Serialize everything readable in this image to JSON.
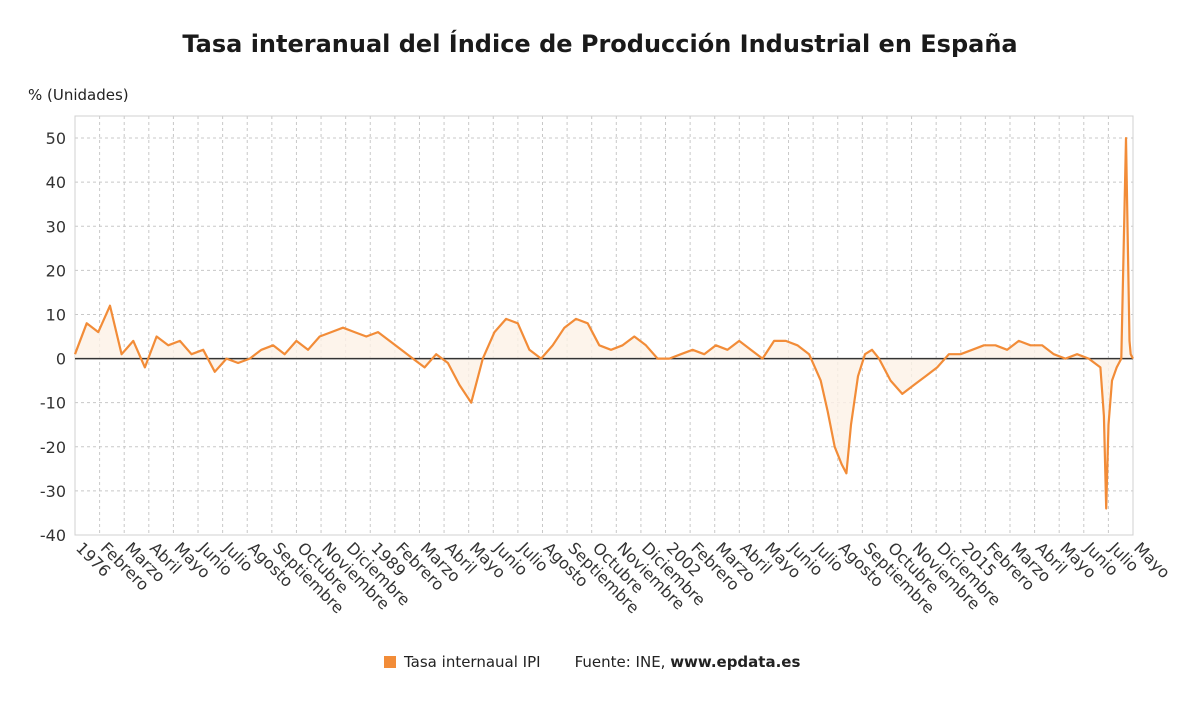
{
  "chart_data": {
    "type": "line",
    "title": "Tasa interanual del Índice de Producción Industrial en España",
    "ylabel": "% (Unidades)",
    "ylim": [
      -40,
      55
    ],
    "yticks": [
      50,
      40,
      30,
      20,
      10,
      0,
      -10,
      -20,
      -30,
      -40
    ],
    "x_start_year": 1976,
    "x_end_year": 2021.4,
    "xtick_labels": [
      "1976",
      "Febrero",
      "Marzo",
      "Abril",
      "Mayo",
      "Junio",
      "Julio",
      "Agosto",
      "Septiembre",
      "Octubre",
      "Noviembre",
      "Diciembre",
      "1989",
      "Febrero",
      "Marzo",
      "Abril",
      "Mayo",
      "Junio",
      "Julio",
      "Agosto",
      "Septiembre",
      "Octubre",
      "Noviembre",
      "Diciembre",
      "2002",
      "Febrero",
      "Marzo",
      "Abril",
      "Mayo",
      "Junio",
      "Julio",
      "Agosto",
      "Septiembre",
      "Octubre",
      "Noviembre",
      "Diciembre",
      "2015",
      "Febrero",
      "Marzo",
      "Abril",
      "Mayo",
      "Junio",
      "Julio",
      "Mayo"
    ],
    "grid": true,
    "legend_position": "bottom",
    "series": [
      {
        "name": "Tasa internaual IPI",
        "color": "#f28c38",
        "x": [
          1976.0,
          1976.5,
          1977.0,
          1977.5,
          1978.0,
          1978.5,
          1979.0,
          1979.5,
          1980.0,
          1980.5,
          1981.0,
          1981.5,
          1982.0,
          1982.5,
          1983.0,
          1983.5,
          1984.0,
          1984.5,
          1985.0,
          1985.5,
          1986.0,
          1986.5,
          1987.0,
          1987.5,
          1988.0,
          1988.5,
          1989.0,
          1989.5,
          1990.0,
          1990.5,
          1991.0,
          1991.5,
          1992.0,
          1992.5,
          1993.0,
          1993.5,
          1994.0,
          1994.5,
          1995.0,
          1995.5,
          1996.0,
          1996.5,
          1997.0,
          1997.5,
          1998.0,
          1998.5,
          1999.0,
          1999.5,
          2000.0,
          2000.5,
          2001.0,
          2001.5,
          2002.0,
          2002.5,
          2003.0,
          2003.5,
          2004.0,
          2004.5,
          2005.0,
          2005.5,
          2006.0,
          2006.5,
          2007.0,
          2007.5,
          2008.0,
          2008.3,
          2008.6,
          2008.9,
          2009.1,
          2009.3,
          2009.6,
          2009.9,
          2010.2,
          2010.5,
          2011.0,
          2011.5,
          2012.0,
          2012.5,
          2013.0,
          2013.5,
          2014.0,
          2014.5,
          2015.0,
          2015.5,
          2016.0,
          2016.5,
          2017.0,
          2017.5,
          2018.0,
          2018.5,
          2019.0,
          2019.5,
          2020.0,
          2020.15,
          2020.25,
          2020.35,
          2020.5,
          2020.7,
          2020.9,
          2021.1,
          2021.25,
          2021.3,
          2021.4
        ],
        "values": [
          1,
          8,
          6,
          12,
          1,
          4,
          -2,
          5,
          3,
          4,
          1,
          2,
          -3,
          0,
          -1,
          0,
          2,
          3,
          1,
          4,
          2,
          5,
          6,
          7,
          6,
          5,
          6,
          4,
          2,
          0,
          -2,
          1,
          -1,
          -6,
          -10,
          0,
          6,
          9,
          8,
          2,
          0,
          3,
          7,
          9,
          8,
          3,
          2,
          3,
          5,
          3,
          0,
          0,
          1,
          2,
          1,
          3,
          2,
          4,
          2,
          0,
          4,
          4,
          3,
          1,
          -5,
          -12,
          -20,
          -24,
          -26,
          -15,
          -4,
          1,
          2,
          0,
          -5,
          -8,
          -6,
          -4,
          -2,
          1,
          1,
          2,
          3,
          3,
          2,
          4,
          3,
          3,
          1,
          0,
          1,
          0,
          -2,
          -13,
          -34,
          -15,
          -5,
          -2,
          0,
          50,
          4,
          1,
          0
        ]
      }
    ]
  },
  "legend": {
    "series_label": "Tasa internaual IPI",
    "source_prefix": "Fuente: INE, ",
    "source_site": "www.epdata.es"
  }
}
